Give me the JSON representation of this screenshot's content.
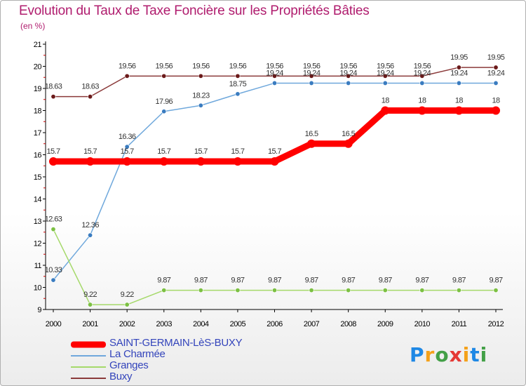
{
  "header": {
    "title": "Evolution du Taux de Taxe Foncière sur les Propriétés Bâties",
    "subtitle": "(en %)"
  },
  "logo": {
    "text": "Proxiti",
    "colors": [
      "#1e88e5",
      "#f4a11b",
      "#43a047",
      "#e53935",
      "#f4a11b",
      "#1e88e5",
      "#43a047"
    ]
  },
  "chart_data": {
    "type": "line",
    "title": "Evolution du Taux de Taxe Foncière sur les Propriétés Bâties",
    "ylabel": "(en %)",
    "xlabel": "",
    "ylim": [
      9,
      21
    ],
    "yticks": [
      9,
      10,
      11,
      12,
      13,
      14,
      15,
      16,
      17,
      18,
      19,
      20,
      21
    ],
    "categories": [
      "2000",
      "2001",
      "2002",
      "2003",
      "2004",
      "2005",
      "2006",
      "2007",
      "2008",
      "2009",
      "2010",
      "2011",
      "2012"
    ],
    "series": [
      {
        "name": "SAINT-GERMAIN-LèS-BUXY",
        "color": "#ff0000",
        "style": "thick",
        "values": [
          15.7,
          15.7,
          15.7,
          15.7,
          15.7,
          15.7,
          15.7,
          16.5,
          16.5,
          18,
          18,
          18,
          18
        ],
        "labels": [
          "15.7",
          "15.7",
          "15.7",
          "15.7",
          "15.7",
          "15.7",
          "15.7",
          "16.5",
          "16.5",
          "18",
          "18",
          "18",
          "18"
        ]
      },
      {
        "name": "La Charmée",
        "color": "#6fa8dc",
        "marker": "#3a7cc0",
        "values": [
          10.33,
          12.36,
          16.36,
          17.96,
          18.23,
          18.75,
          19.24,
          19.24,
          19.24,
          19.24,
          19.24,
          19.24,
          19.24
        ],
        "labels": [
          "10.33",
          "12.36",
          "16.36",
          "17.96",
          "18.23",
          "18.75",
          "19.24",
          "19.24",
          "19.24",
          "19.24",
          "19.24",
          "19.24",
          "19.24"
        ]
      },
      {
        "name": "Granges",
        "color": "#a5d96a",
        "marker": "#7cc043",
        "values": [
          12.63,
          9.22,
          9.22,
          9.87,
          9.87,
          9.87,
          9.87,
          9.87,
          9.87,
          9.87,
          9.87,
          9.87,
          9.87
        ],
        "labels": [
          "12.63",
          "9.22",
          "9.22",
          "9.87",
          "9.87",
          "9.87",
          "9.87",
          "9.87",
          "9.87",
          "9.87",
          "9.87",
          "9.87",
          "9.87"
        ]
      },
      {
        "name": "Buxy",
        "color": "#8b3a3a",
        "marker": "#6b1a1a",
        "values": [
          18.63,
          18.63,
          19.56,
          19.56,
          19.56,
          19.56,
          19.56,
          19.56,
          19.56,
          19.56,
          19.56,
          19.95,
          19.95
        ],
        "labels": [
          "18.63",
          "18.63",
          "19.56",
          "19.56",
          "19.56",
          "19.56",
          "19.56",
          "19.56",
          "19.56",
          "19.56",
          "19.56",
          "19.95",
          "19.95"
        ]
      }
    ],
    "grid": false,
    "legend": "bottom-left"
  }
}
